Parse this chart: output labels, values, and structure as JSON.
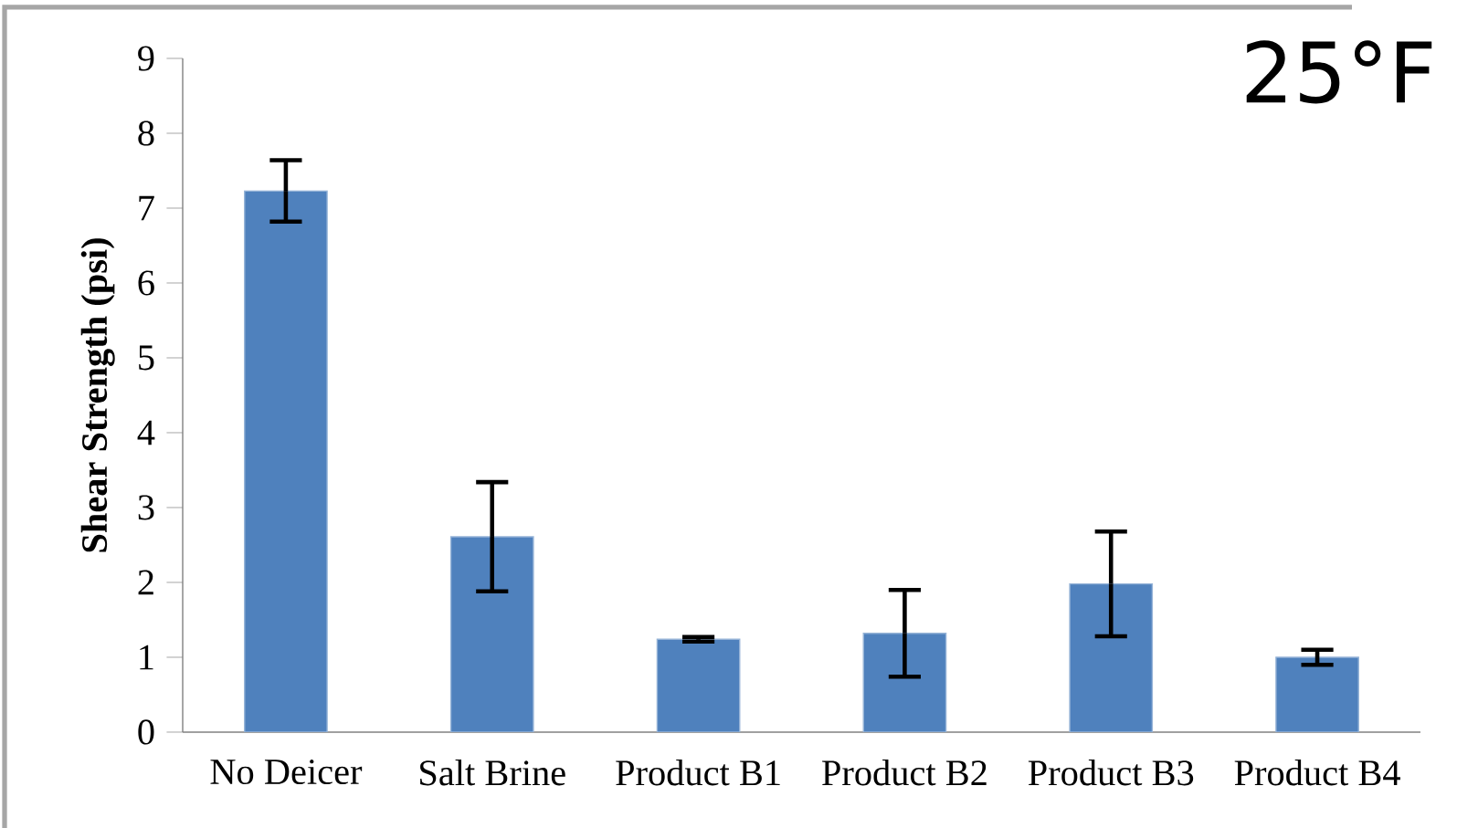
{
  "chart_data": {
    "type": "bar",
    "ylabel": "Shear Strength (psi)",
    "categories": [
      "No Deicer",
      "Salt Brine",
      "Product B1",
      "Product B2",
      "Product B3",
      "Product B4"
    ],
    "values": [
      7.23,
      2.61,
      1.24,
      1.32,
      1.98,
      1.0
    ],
    "errors": [
      0.41,
      0.73,
      0.03,
      0.58,
      0.7,
      0.1
    ],
    "color": "#4f81bd",
    "ylim": [
      0,
      9
    ],
    "yticks": [
      0,
      1,
      2,
      3,
      4,
      5,
      6,
      7,
      8,
      9
    ],
    "annotations": [
      "25°F"
    ]
  }
}
